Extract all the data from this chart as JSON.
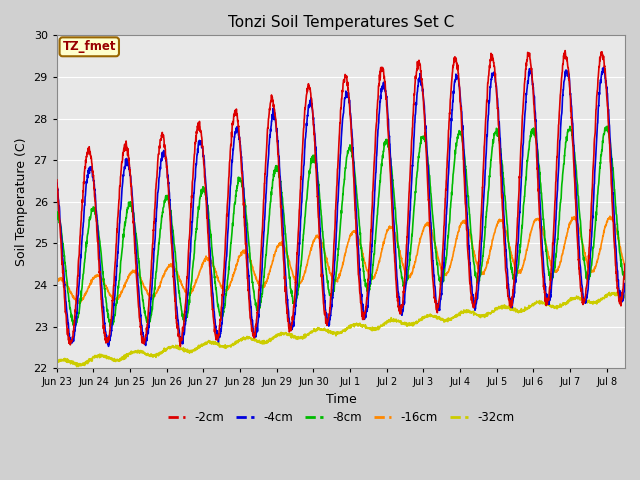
{
  "title": "Tonzi Soil Temperatures Set C",
  "xlabel": "Time",
  "ylabel": "Soil Temperature (C)",
  "ylim": [
    22.0,
    30.0
  ],
  "yticks": [
    22.0,
    23.0,
    24.0,
    25.0,
    26.0,
    27.0,
    28.0,
    29.0,
    30.0
  ],
  "fig_bg_color": "#d0d0d0",
  "plot_bg_color": "#e8e8e8",
  "lines": {
    "-2cm": {
      "color": "#dd0000",
      "lw": 1.2
    },
    "-4cm": {
      "color": "#0000dd",
      "lw": 1.2
    },
    "-8cm": {
      "color": "#00bb00",
      "lw": 1.2
    },
    "-16cm": {
      "color": "#ff8800",
      "lw": 1.2
    },
    "-32cm": {
      "color": "#cccc00",
      "lw": 1.2
    }
  },
  "tz_fmet_label": "TZ_fmet",
  "tz_fmet_bg": "#ffffcc",
  "tz_fmet_border": "#996600",
  "tick_labels": [
    "Jun 23",
    "Jun 24",
    "Jun 25",
    "Jun 26",
    "Jun 27",
    "Jun 28",
    "Jun 29",
    "Jun 30",
    "Jul 1",
    "Jul 2",
    "Jul 3",
    "Jul 4",
    "Jul 5",
    "Jul 6",
    "Jul 7",
    "Jul 8"
  ]
}
